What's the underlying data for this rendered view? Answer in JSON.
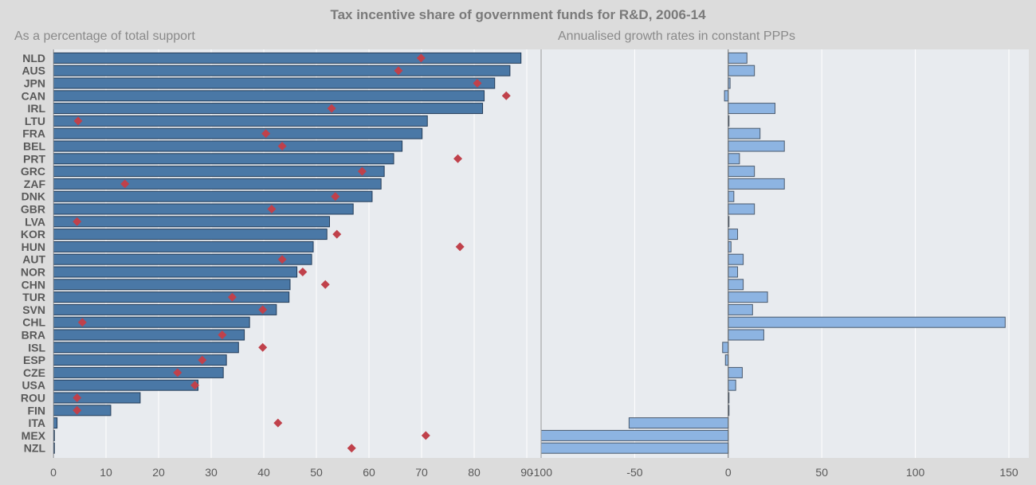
{
  "chart_data": {
    "title": "Tax incentive share of government funds for R&D, 2006-14",
    "categories": [
      "NLD",
      "AUS",
      "JPN",
      "CAN",
      "IRL",
      "LTU",
      "FRA",
      "BEL",
      "PRT",
      "GRC",
      "ZAF",
      "DNK",
      "GBR",
      "LVA",
      "KOR",
      "HUN",
      "AUT",
      "NOR",
      "CHN",
      "TUR",
      "SVN",
      "CHL",
      "BRA",
      "ISL",
      "ESP",
      "CZE",
      "USA",
      "ROU",
      "FIN",
      "ITA",
      "MEX",
      "NZL"
    ],
    "panels": [
      {
        "type": "bar",
        "subtitle": "As a percentage of total support",
        "xlim": [
          0,
          90
        ],
        "ticks": [
          0,
          10,
          20,
          30,
          40,
          50,
          60,
          70,
          80,
          90
        ],
        "series": [
          {
            "name": "Share (bars)",
            "values": [
              88.9,
              86.8,
              83.9,
              81.9,
              81.6,
              71.1,
              70.1,
              66.3,
              64.7,
              62.9,
              62.3,
              60.6,
              57.0,
              52.5,
              52.0,
              49.4,
              49.1,
              46.3,
              45.0,
              44.8,
              42.4,
              37.3,
              36.3,
              35.2,
              32.9,
              32.3,
              27.5,
              16.5,
              10.9,
              0.7,
              0.2,
              0.2
            ]
          },
          {
            "name": "Share (markers)",
            "values": [
              69.9,
              65.6,
              80.6,
              86.1,
              52.9,
              4.7,
              40.4,
              43.5,
              76.9,
              58.7,
              13.6,
              53.6,
              41.5,
              4.5,
              53.9,
              77.3,
              43.5,
              47.4,
              51.7,
              34.0,
              39.8,
              5.5,
              32.1,
              39.8,
              28.3,
              23.6,
              26.9,
              4.5,
              4.5,
              42.7,
              70.8,
              56.7
            ]
          }
        ]
      },
      {
        "type": "bar",
        "subtitle": "Annualised growth rates in constant PPPs",
        "xlim": [
          -100,
          150
        ],
        "ticks": [
          -100,
          -50,
          0,
          50,
          100,
          150
        ],
        "series": [
          {
            "name": "Growth rate",
            "values": [
              10,
              14,
              1,
              -2,
              25,
              0,
              17,
              30,
              6,
              14,
              30,
              3,
              14,
              0,
              5,
              1.5,
              8,
              5,
              8,
              21,
              13,
              148,
              19,
              -3,
              -1.5,
              7.5,
              4,
              0,
              0,
              -53,
              -100,
              -100
            ]
          }
        ]
      }
    ]
  }
}
